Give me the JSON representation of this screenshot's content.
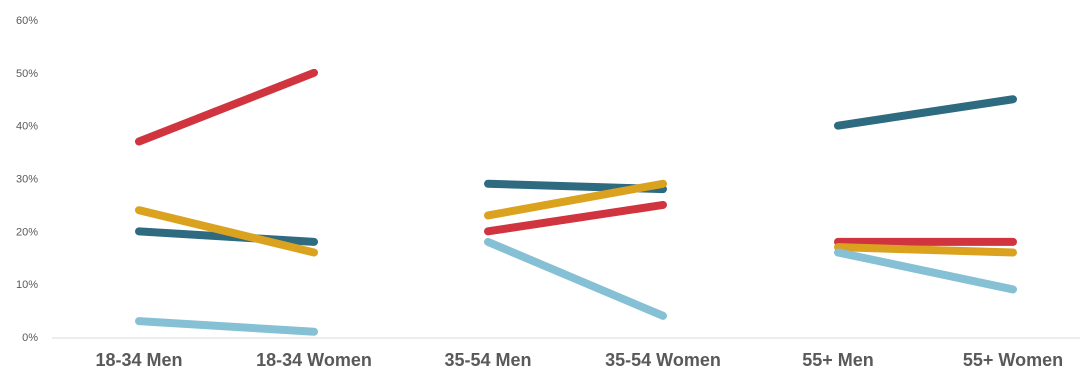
{
  "chart_data": {
    "type": "line",
    "title": "",
    "xlabel": "",
    "ylabel": "",
    "ylim": [
      0,
      60
    ],
    "yticks": [
      "0%",
      "10%",
      "20%",
      "30%",
      "40%",
      "50%",
      "60%"
    ],
    "grid": false,
    "legend": "none",
    "groups": [
      {
        "categories": [
          "18-34 Men",
          "18-34 Women"
        ]
      },
      {
        "categories": [
          "35-54 Men",
          "35-54 Women"
        ]
      },
      {
        "categories": [
          "55+ Men",
          "55+ Women"
        ]
      }
    ],
    "categories": [
      "18-34 Men",
      "18-34 Women",
      "35-54 Men",
      "35-54 Women",
      "55+ Men",
      "55+ Women"
    ],
    "series": [
      {
        "color": "#2e6a80",
        "values": [
          20,
          18,
          29,
          28,
          40,
          45
        ]
      },
      {
        "color": "#d0343f",
        "values": [
          37,
          50,
          20,
          25,
          18,
          18
        ]
      },
      {
        "color": "#dba21f",
        "values": [
          24,
          16,
          23,
          29,
          17,
          16
        ]
      },
      {
        "color": "#86c0d4",
        "values": [
          3,
          1,
          18,
          4,
          16,
          9
        ]
      }
    ]
  }
}
